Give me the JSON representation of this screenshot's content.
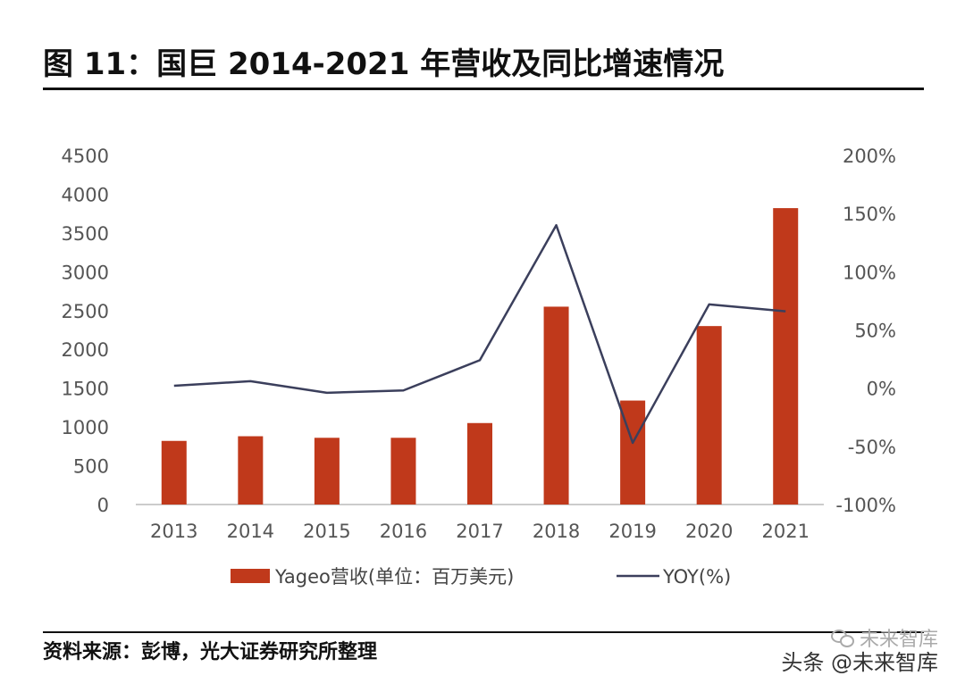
{
  "title": "图 11：国巨 2014-2021 年营收及同比增速情况",
  "source": "资料来源：彭博，光大证券研究所整理",
  "watermark": {
    "top": "未来智库",
    "bottom": "头条 @未来智库"
  },
  "colors": {
    "bar": "#c0391b",
    "line": "#3b3f5c",
    "axis": "#bbbbbb"
  },
  "chart_data": {
    "type": "bar",
    "categories": [
      "2013",
      "2014",
      "2015",
      "2016",
      "2017",
      "2018",
      "2019",
      "2020",
      "2021"
    ],
    "series": [
      {
        "name": "Yageo营收(单位：百万美元)",
        "type": "bar",
        "axis": "left",
        "values": [
          820,
          880,
          860,
          860,
          1050,
          2550,
          1340,
          2300,
          3820
        ]
      },
      {
        "name": "YOY(%)",
        "type": "line",
        "axis": "right",
        "values": [
          2,
          6,
          -4,
          -2,
          24,
          140,
          -47,
          72,
          66
        ]
      }
    ],
    "left_axis": {
      "ticks": [
        "0",
        "500",
        "1000",
        "1500",
        "2000",
        "2500",
        "3000",
        "3500",
        "4000",
        "4500"
      ],
      "ylim": [
        0,
        4500
      ]
    },
    "right_axis": {
      "ticks": [
        "-100%",
        "-50%",
        "0%",
        "50%",
        "100%",
        "150%",
        "200%"
      ],
      "ylim": [
        -100,
        200
      ]
    },
    "legend": [
      "Yageo营收(单位：百万美元)",
      "YOY(%)"
    ],
    "legend_position": "bottom",
    "grid": false
  }
}
